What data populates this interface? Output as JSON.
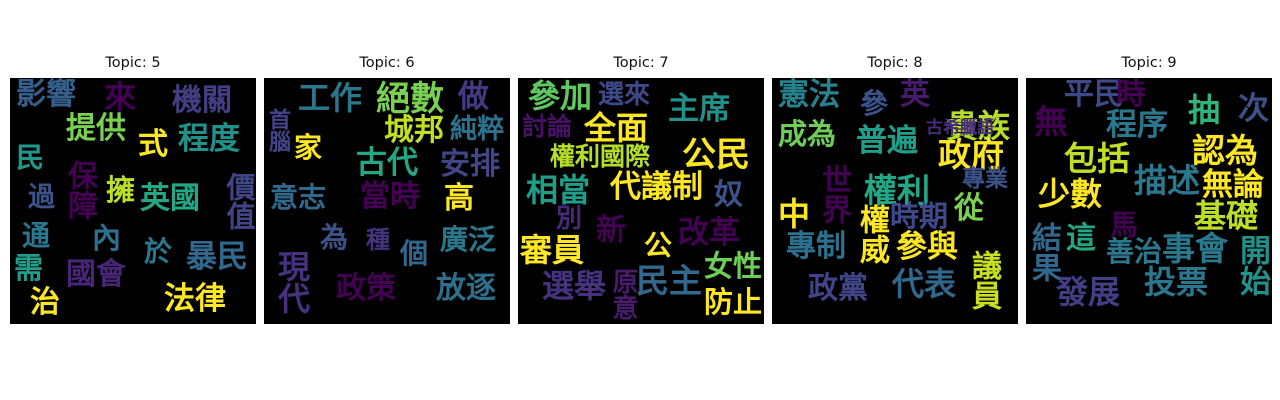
{
  "chart_data": [
    {
      "type": "wordcloud",
      "title": "Topic: 5",
      "words": [
        {
          "text": "影響",
          "color": "#35608d"
        },
        {
          "text": "來",
          "color": "#440154"
        },
        {
          "text": "機關",
          "color": "#433e85"
        },
        {
          "text": "提供",
          "color": "#7ad151"
        },
        {
          "text": "式",
          "color": "#fde725"
        },
        {
          "text": "程度",
          "color": "#21918c"
        },
        {
          "text": "民",
          "color": "#1f988b"
        },
        {
          "text": "保障",
          "color": "#440154"
        },
        {
          "text": "擁",
          "color": "#bddf26"
        },
        {
          "text": "英國",
          "color": "#22a884"
        },
        {
          "text": "過",
          "color": "#3b528b"
        },
        {
          "text": "價值",
          "color": "#414487"
        },
        {
          "text": "通",
          "color": "#2a788e"
        },
        {
          "text": "內",
          "color": "#2c728e"
        },
        {
          "text": "於",
          "color": "#2a788e"
        },
        {
          "text": "暴民",
          "color": "#31688e"
        },
        {
          "text": "需",
          "color": "#1f9e89"
        },
        {
          "text": "國會",
          "color": "#482677"
        },
        {
          "text": "治",
          "color": "#fde725"
        },
        {
          "text": "法律",
          "color": "#fde725"
        }
      ]
    },
    {
      "type": "wordcloud",
      "title": "Topic: 6",
      "words": [
        {
          "text": "工作",
          "color": "#2a788e"
        },
        {
          "text": "絕數",
          "color": "#7ad151"
        },
        {
          "text": "做",
          "color": "#443983"
        },
        {
          "text": "首腦",
          "color": "#414487"
        },
        {
          "text": "家",
          "color": "#fde725"
        },
        {
          "text": "城邦",
          "color": "#c2df23"
        },
        {
          "text": "純粹",
          "color": "#2c728e"
        },
        {
          "text": "古代",
          "color": "#22a884"
        },
        {
          "text": "安排",
          "color": "#404688"
        },
        {
          "text": "意志",
          "color": "#31688e"
        },
        {
          "text": "當時",
          "color": "#440154"
        },
        {
          "text": "高",
          "color": "#fde725"
        },
        {
          "text": "為",
          "color": "#3b528b"
        },
        {
          "text": "種",
          "color": "#46337f"
        },
        {
          "text": "個",
          "color": "#31688e"
        },
        {
          "text": "廣泛",
          "color": "#2a788e"
        },
        {
          "text": "現代",
          "color": "#46327e"
        },
        {
          "text": "政策",
          "color": "#440154"
        },
        {
          "text": "放逐",
          "color": "#2d708e"
        }
      ]
    },
    {
      "type": "wordcloud",
      "title": "Topic: 7",
      "words": [
        {
          "text": "參加",
          "color": "#5ec962"
        },
        {
          "text": "選來",
          "color": "#3e4989"
        },
        {
          "text": "主席",
          "color": "#21918c"
        },
        {
          "text": "討論",
          "color": "#471164"
        },
        {
          "text": "全面",
          "color": "#fde725"
        },
        {
          "text": "權利國際",
          "color": "#b5de2b"
        },
        {
          "text": "公民",
          "color": "#fde725"
        },
        {
          "text": "相當",
          "color": "#1f9e89"
        },
        {
          "text": "代議制",
          "color": "#fde725"
        },
        {
          "text": "奴",
          "color": "#3b528b"
        },
        {
          "text": "別",
          "color": "#482878"
        },
        {
          "text": "新",
          "color": "#440154"
        },
        {
          "text": "改革",
          "color": "#440154"
        },
        {
          "text": "公",
          "color": "#fde725"
        },
        {
          "text": "審員",
          "color": "#fde725"
        },
        {
          "text": "選舉",
          "color": "#46327e"
        },
        {
          "text": "原意",
          "color": "#481b6d"
        },
        {
          "text": "民主",
          "color": "#31688e"
        },
        {
          "text": "女性",
          "color": "#6ece58"
        },
        {
          "text": "防止",
          "color": "#fde725"
        }
      ]
    },
    {
      "type": "wordcloud",
      "title": "Topic: 8",
      "words": [
        {
          "text": "憲法",
          "color": "#26828e"
        },
        {
          "text": "參",
          "color": "#3b528b"
        },
        {
          "text": "英",
          "color": "#481a6c"
        },
        {
          "text": "貴族",
          "color": "#b8de29"
        },
        {
          "text": "成為",
          "color": "#6ece58"
        },
        {
          "text": "普遍",
          "color": "#1f9e89"
        },
        {
          "text": "古希臘語",
          "color": "#472d7b"
        },
        {
          "text": "政府",
          "color": "#fde725"
        },
        {
          "text": "世界",
          "color": "#440154"
        },
        {
          "text": "權利",
          "color": "#22a884"
        },
        {
          "text": "專業",
          "color": "#3b528b"
        },
        {
          "text": "中",
          "color": "#fde725"
        },
        {
          "text": "時期",
          "color": "#3e4989"
        },
        {
          "text": "從",
          "color": "#7ad151"
        },
        {
          "text": "權威",
          "color": "#fde725"
        },
        {
          "text": "專制",
          "color": "#2c728e"
        },
        {
          "text": "參與",
          "color": "#fde725"
        },
        {
          "text": "議員",
          "color": "#c8e020"
        },
        {
          "text": "政黨",
          "color": "#414487"
        },
        {
          "text": "代表",
          "color": "#31688e"
        }
      ]
    },
    {
      "type": "wordcloud",
      "title": "Topic: 9",
      "words": [
        {
          "text": "平民",
          "color": "#3e4989"
        },
        {
          "text": "時",
          "color": "#440154"
        },
        {
          "text": "無",
          "color": "#440154"
        },
        {
          "text": "程序",
          "color": "#2a788e"
        },
        {
          "text": "抽",
          "color": "#2fb47c"
        },
        {
          "text": "次",
          "color": "#3b528b"
        },
        {
          "text": "包括",
          "color": "#c2df23"
        },
        {
          "text": "認為",
          "color": "#fde725"
        },
        {
          "text": "少數",
          "color": "#fde725"
        },
        {
          "text": "描述",
          "color": "#2a788e"
        },
        {
          "text": "無論",
          "color": "#fde725"
        },
        {
          "text": "基礎",
          "color": "#bddf26"
        },
        {
          "text": "馬",
          "color": "#440154"
        },
        {
          "text": "結果",
          "color": "#31688e"
        },
        {
          "text": "這",
          "color": "#22a884"
        },
        {
          "text": "善治",
          "color": "#2a788e"
        },
        {
          "text": "事會",
          "color": "#2a788e"
        },
        {
          "text": "開始",
          "color": "#21918c"
        },
        {
          "text": "發展",
          "color": "#433e85"
        },
        {
          "text": "投票",
          "color": "#2a788e"
        }
      ]
    }
  ]
}
